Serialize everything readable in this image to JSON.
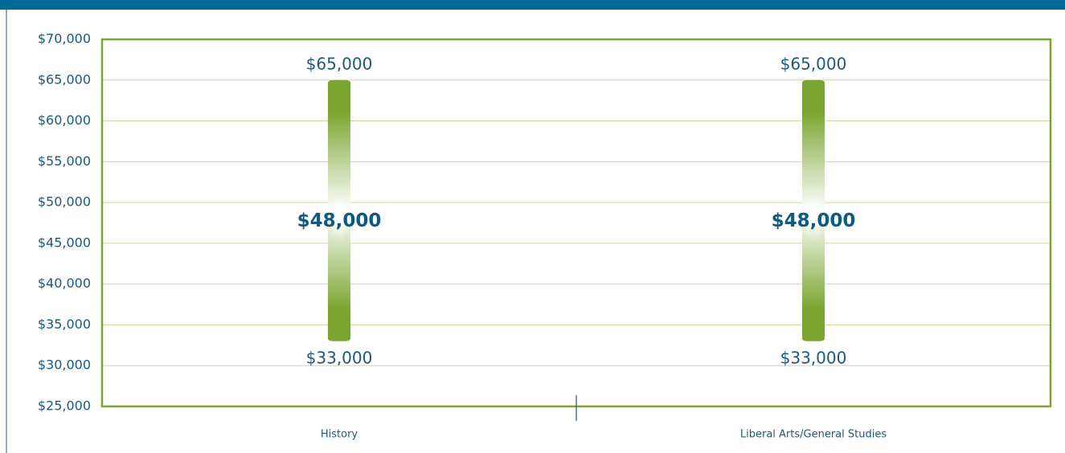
{
  "chart_data": {
    "type": "range",
    "categories": [
      "History",
      "Liberal Arts/General Studies"
    ],
    "low": {
      "values": [
        33000,
        33000
      ],
      "value_labels": [
        "$33,000",
        "$33,000"
      ]
    },
    "high": {
      "values": [
        65000,
        65000
      ],
      "value_labels": [
        "$65,000",
        "$65,000"
      ]
    },
    "median": {
      "values": [
        48000,
        48000
      ],
      "value_labels": [
        "$48,000",
        "$48,000"
      ]
    },
    "color": "#7aa530",
    "ylim": [
      25000,
      70000
    ],
    "yticks": [
      {
        "value": 25000,
        "label": "$25,000"
      },
      {
        "value": 30000,
        "label": "$30,000"
      },
      {
        "value": 35000,
        "label": "$35,000"
      },
      {
        "value": 40000,
        "label": "$40,000"
      },
      {
        "value": 45000,
        "label": "$45,000"
      },
      {
        "value": 50000,
        "label": "$50,000"
      },
      {
        "value": 55000,
        "label": "$55,000"
      },
      {
        "value": 60000,
        "label": "$60,000"
      },
      {
        "value": 65000,
        "label": "$65,000"
      },
      {
        "value": 70000,
        "label": "$70,000"
      }
    ],
    "grid": true
  }
}
